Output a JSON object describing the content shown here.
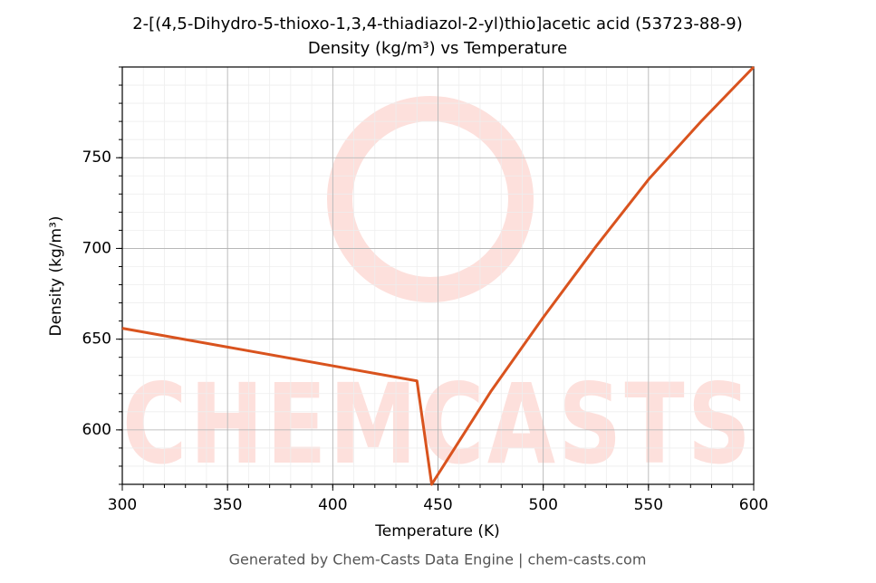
{
  "chart_data": {
    "type": "line",
    "title": "2-[(4,5-Dihydro-5-thioxo-1,3,4-thiadiazol-2-yl)thio]acetic acid (53723-88-9)",
    "subtitle": "Density (kg/m³) vs Temperature",
    "x_label": "Temperature (K)",
    "y_label": "Density (kg/m³)",
    "x": [
      300,
      440,
      447,
      475,
      500,
      525,
      550,
      575,
      600
    ],
    "series": [
      {
        "name": "Density",
        "color": "#d9531e",
        "values": [
          656,
          627,
          570,
          621,
          662,
          701,
          738,
          770,
          800
        ]
      }
    ],
    "xlim": [
      300,
      600
    ],
    "xticks": [
      300,
      350,
      400,
      450,
      500,
      550,
      600
    ],
    "ylim": [
      570,
      800
    ],
    "yticks": [
      600,
      650,
      700,
      750
    ],
    "grid": true,
    "watermark": "CHEMCASTS",
    "footer": "Generated by Chem-Casts Data Engine | chem-casts.com"
  }
}
